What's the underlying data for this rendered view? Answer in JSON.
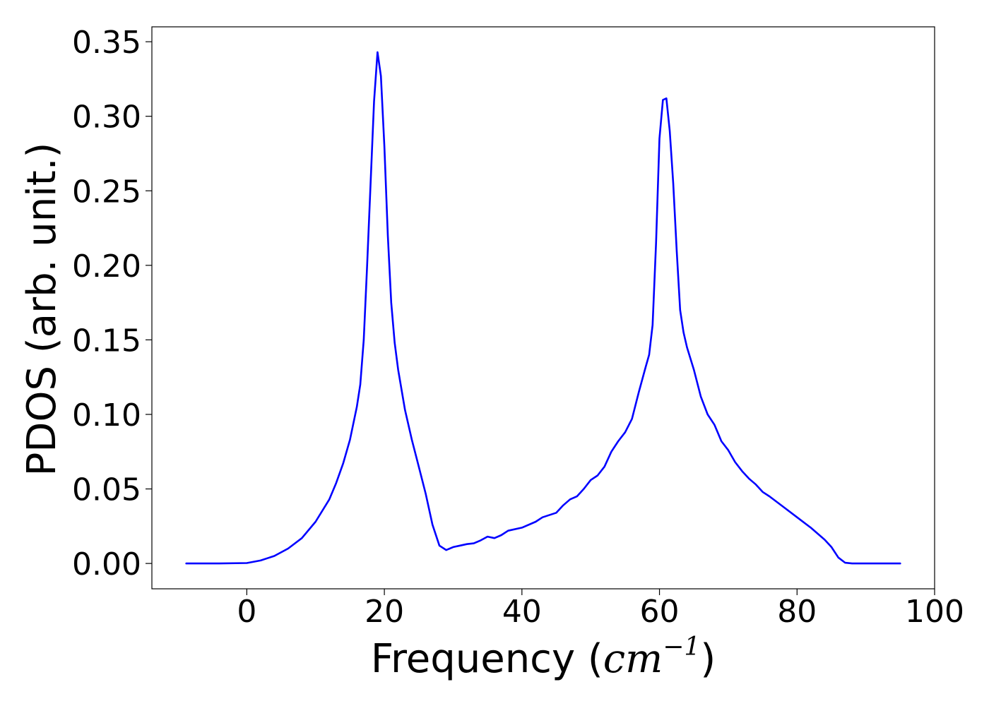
{
  "chart_data": {
    "type": "line",
    "xlabel_prefix": "Frequency (",
    "xlabel_unit": "cm",
    "xlabel_exponent": "−1",
    "xlabel_suffix": ")",
    "ylabel": "PDOS (arb. unit.)",
    "xlim": [
      -13.8,
      100
    ],
    "ylim": [
      -0.017,
      0.36
    ],
    "xticks": [
      0,
      20,
      40,
      60,
      80,
      100
    ],
    "xtick_labels": [
      "0",
      "20",
      "40",
      "60",
      "80",
      "100"
    ],
    "yticks": [
      0.0,
      0.05,
      0.1,
      0.15,
      0.2,
      0.25,
      0.3,
      0.35
    ],
    "ytick_labels": [
      "0.00",
      "0.05",
      "0.10",
      "0.15",
      "0.20",
      "0.25",
      "0.30",
      "0.35"
    ],
    "grid": false,
    "series": [
      {
        "color": "#0000ff",
        "x": [
          -8.8,
          -4,
          0,
          2,
          4,
          6,
          8,
          10,
          12,
          13,
          14,
          15,
          16,
          16.5,
          17,
          17.5,
          18,
          18.5,
          19,
          19.5,
          20,
          20.5,
          21,
          21.5,
          22,
          23,
          24,
          25,
          26,
          27,
          28,
          29,
          30,
          31,
          32,
          33,
          34,
          35,
          36,
          37,
          38,
          40,
          42,
          43,
          45,
          46,
          47,
          48,
          49,
          50,
          51,
          52,
          53,
          54,
          55,
          56,
          57,
          58,
          58.5,
          59,
          59.5,
          60,
          60.5,
          61,
          61.5,
          62,
          62.5,
          63,
          63.5,
          64,
          65,
          66,
          67,
          68,
          69,
          70,
          71,
          72,
          73,
          74,
          75,
          76,
          78,
          80,
          82,
          84,
          85,
          86,
          87,
          88,
          90,
          95
        ],
        "y": [
          0.0,
          0.0,
          0.0003,
          0.002,
          0.005,
          0.01,
          0.017,
          0.028,
          0.043,
          0.054,
          0.067,
          0.083,
          0.105,
          0.12,
          0.15,
          0.2,
          0.255,
          0.31,
          0.343,
          0.327,
          0.28,
          0.22,
          0.175,
          0.148,
          0.13,
          0.103,
          0.083,
          0.065,
          0.047,
          0.026,
          0.012,
          0.009,
          0.011,
          0.012,
          0.013,
          0.0135,
          0.0155,
          0.018,
          0.017,
          0.019,
          0.022,
          0.024,
          0.028,
          0.031,
          0.034,
          0.039,
          0.043,
          0.045,
          0.05,
          0.056,
          0.059,
          0.065,
          0.075,
          0.082,
          0.088,
          0.097,
          0.115,
          0.132,
          0.14,
          0.16,
          0.215,
          0.285,
          0.311,
          0.312,
          0.29,
          0.255,
          0.21,
          0.17,
          0.155,
          0.145,
          0.13,
          0.112,
          0.1,
          0.093,
          0.082,
          0.076,
          0.068,
          0.062,
          0.057,
          0.053,
          0.048,
          0.045,
          0.038,
          0.031,
          0.024,
          0.016,
          0.011,
          0.004,
          0.0005,
          0.0,
          0.0,
          0.0
        ]
      }
    ]
  }
}
